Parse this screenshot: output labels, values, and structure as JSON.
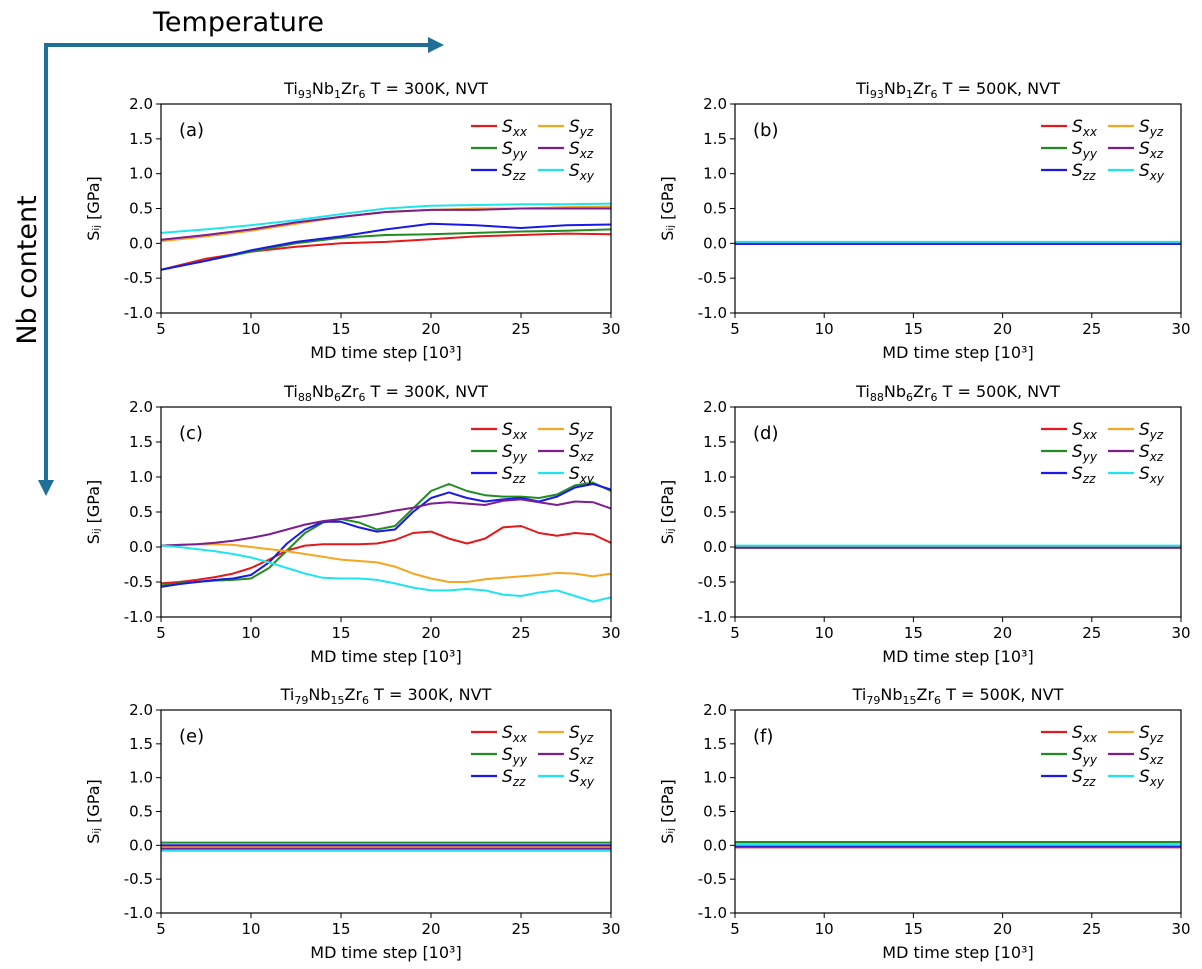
{
  "figure": {
    "x_arrow_label": "Temperature",
    "y_arrow_label": "Nb content",
    "arrow_color": "#1f6f96"
  },
  "colors": {
    "Sxx": "#e31a1c",
    "Syy": "#228b22",
    "Szz": "#1a1ae6",
    "Syz": "#f5a623",
    "Sxz": "#7b1f8f",
    "Sxy": "#1fe4f0"
  },
  "chart_data": [
    {
      "type": "line",
      "panel": "(a)",
      "title": {
        "alloy": "Ti",
        "sub1": "93",
        "el2": "Nb",
        "sub2": "1",
        "el3": "Zr",
        "sub3": "6",
        "temp": "T = 300K, NVT"
      },
      "xlabel": "MD time step [10³]",
      "ylabel": "Sᵢⱼ [GPa]",
      "xlim": [
        5,
        30
      ],
      "ylim": [
        -1.0,
        2.0
      ],
      "xticks": [
        "5",
        "10",
        "15",
        "20",
        "25",
        "30"
      ],
      "yticks": [
        "-1.0",
        "-0.5",
        "0.0",
        "0.5",
        "1.0",
        "1.5",
        "2.0"
      ],
      "x": [
        5,
        7.5,
        10,
        12.5,
        15,
        17.5,
        20,
        22.5,
        25,
        27.5,
        30
      ],
      "series": [
        {
          "name": "Sxx",
          "values": [
            -0.38,
            -0.22,
            -0.12,
            -0.05,
            0.0,
            0.02,
            0.06,
            0.1,
            0.12,
            0.14,
            0.13
          ]
        },
        {
          "name": "Syy",
          "values": [
            -0.38,
            -0.25,
            -0.12,
            0.0,
            0.08,
            0.12,
            0.13,
            0.15,
            0.17,
            0.18,
            0.2
          ]
        },
        {
          "name": "Szz",
          "values": [
            -0.38,
            -0.25,
            -0.1,
            0.02,
            0.1,
            0.2,
            0.28,
            0.26,
            0.22,
            0.26,
            0.27
          ]
        },
        {
          "name": "Syz",
          "values": [
            0.03,
            0.1,
            0.18,
            0.28,
            0.38,
            0.45,
            0.48,
            0.5,
            0.5,
            0.52,
            0.53
          ]
        },
        {
          "name": "Sxz",
          "values": [
            0.05,
            0.12,
            0.2,
            0.3,
            0.38,
            0.45,
            0.48,
            0.48,
            0.5,
            0.5,
            0.5
          ]
        },
        {
          "name": "Sxy",
          "values": [
            0.15,
            0.2,
            0.26,
            0.33,
            0.42,
            0.5,
            0.54,
            0.55,
            0.56,
            0.56,
            0.57
          ]
        }
      ],
      "legend_labels": [
        {
          "base": "S",
          "sub": "xx"
        },
        {
          "base": "S",
          "sub": "yz"
        },
        {
          "base": "S",
          "sub": "yy"
        },
        {
          "base": "S",
          "sub": "xz"
        },
        {
          "base": "S",
          "sub": "zz"
        },
        {
          "base": "S",
          "sub": "xy"
        }
      ],
      "legend_position": "top-right"
    },
    {
      "type": "line",
      "panel": "(b)",
      "title": {
        "alloy": "Ti",
        "sub1": "93",
        "el2": "Nb",
        "sub2": "1",
        "el3": "Zr",
        "sub3": "6",
        "temp": "T = 500K, NVT"
      },
      "xlabel": "MD time step [10³]",
      "ylabel": "Sᵢⱼ [GPa]",
      "xlim": [
        5,
        30
      ],
      "ylim": [
        -1.0,
        2.0
      ],
      "xticks": [
        "5",
        "10",
        "15",
        "20",
        "25",
        "30"
      ],
      "yticks": [
        "-1.0",
        "-0.5",
        "0.0",
        "0.5",
        "1.0",
        "1.5",
        "2.0"
      ],
      "x": [
        5,
        30
      ],
      "series": [
        {
          "name": "Sxx",
          "values": [
            0.0,
            0.0
          ]
        },
        {
          "name": "Syy",
          "values": [
            0.01,
            0.01
          ]
        },
        {
          "name": "Szz",
          "values": [
            -0.01,
            -0.01
          ]
        },
        {
          "name": "Syz",
          "values": [
            0.01,
            0.01
          ]
        },
        {
          "name": "Sxz",
          "values": [
            0.0,
            0.0
          ]
        },
        {
          "name": "Sxy",
          "values": [
            0.02,
            0.02
          ]
        }
      ],
      "legend_labels": [
        {
          "base": "S",
          "sub": "xx"
        },
        {
          "base": "S",
          "sub": "yz"
        },
        {
          "base": "S",
          "sub": "yy"
        },
        {
          "base": "S",
          "sub": "xz"
        },
        {
          "base": "S",
          "sub": "zz"
        },
        {
          "base": "S",
          "sub": "xy"
        }
      ],
      "legend_position": "top-right"
    },
    {
      "type": "line",
      "panel": "(c)",
      "title": {
        "alloy": "Ti",
        "sub1": "88",
        "el2": "Nb",
        "sub2": "6",
        "el3": "Zr",
        "sub3": "6",
        "temp": "T = 300K, NVT"
      },
      "xlabel": "MD time step [10³]",
      "ylabel": "Sᵢⱼ [GPa]",
      "xlim": [
        5,
        30
      ],
      "ylim": [
        -1.0,
        2.0
      ],
      "xticks": [
        "5",
        "10",
        "15",
        "20",
        "25",
        "30"
      ],
      "yticks": [
        "-1.0",
        "-0.5",
        "0.0",
        "0.5",
        "1.0",
        "1.5",
        "2.0"
      ],
      "x": [
        5,
        6,
        7,
        8,
        9,
        10,
        11,
        12,
        13,
        14,
        15,
        16,
        17,
        18,
        19,
        20,
        21,
        22,
        23,
        24,
        25,
        26,
        27,
        28,
        29,
        30
      ],
      "series": [
        {
          "name": "Sxx",
          "values": [
            -0.52,
            -0.5,
            -0.47,
            -0.43,
            -0.38,
            -0.3,
            -0.18,
            -0.05,
            0.02,
            0.04,
            0.04,
            0.04,
            0.05,
            0.1,
            0.2,
            0.22,
            0.12,
            0.05,
            0.12,
            0.28,
            0.3,
            0.2,
            0.16,
            0.2,
            0.18,
            0.06
          ]
        },
        {
          "name": "Syy",
          "values": [
            -0.55,
            -0.52,
            -0.5,
            -0.48,
            -0.47,
            -0.45,
            -0.3,
            -0.05,
            0.2,
            0.35,
            0.4,
            0.35,
            0.25,
            0.3,
            0.55,
            0.8,
            0.9,
            0.8,
            0.74,
            0.72,
            0.72,
            0.7,
            0.75,
            0.88,
            0.92,
            0.8
          ]
        },
        {
          "name": "Szz",
          "values": [
            -0.57,
            -0.53,
            -0.5,
            -0.47,
            -0.45,
            -0.4,
            -0.22,
            0.05,
            0.25,
            0.36,
            0.36,
            0.28,
            0.22,
            0.25,
            0.5,
            0.7,
            0.78,
            0.7,
            0.65,
            0.68,
            0.7,
            0.65,
            0.72,
            0.85,
            0.9,
            0.82
          ]
        },
        {
          "name": "Syz",
          "values": [
            0.02,
            0.03,
            0.04,
            0.04,
            0.03,
            0.0,
            -0.03,
            -0.06,
            -0.1,
            -0.14,
            -0.18,
            -0.2,
            -0.22,
            -0.28,
            -0.38,
            -0.45,
            -0.5,
            -0.5,
            -0.46,
            -0.44,
            -0.42,
            -0.4,
            -0.37,
            -0.38,
            -0.42,
            -0.38
          ]
        },
        {
          "name": "Sxz",
          "values": [
            0.02,
            0.03,
            0.04,
            0.06,
            0.09,
            0.13,
            0.18,
            0.25,
            0.32,
            0.37,
            0.4,
            0.43,
            0.47,
            0.52,
            0.56,
            0.62,
            0.64,
            0.62,
            0.6,
            0.66,
            0.68,
            0.64,
            0.6,
            0.65,
            0.64,
            0.55
          ]
        },
        {
          "name": "Sxy",
          "values": [
            0.02,
            0.0,
            -0.03,
            -0.06,
            -0.1,
            -0.15,
            -0.22,
            -0.3,
            -0.38,
            -0.44,
            -0.45,
            -0.45,
            -0.47,
            -0.52,
            -0.58,
            -0.62,
            -0.62,
            -0.6,
            -0.62,
            -0.68,
            -0.7,
            -0.65,
            -0.62,
            -0.7,
            -0.78,
            -0.72
          ]
        }
      ],
      "legend_labels": [
        {
          "base": "S",
          "sub": "xx"
        },
        {
          "base": "S",
          "sub": "yz"
        },
        {
          "base": "S",
          "sub": "yy"
        },
        {
          "base": "S",
          "sub": "xz"
        },
        {
          "base": "S",
          "sub": "zz"
        },
        {
          "base": "S",
          "sub": "xy"
        }
      ],
      "legend_position": "top-right"
    },
    {
      "type": "line",
      "panel": "(d)",
      "title": {
        "alloy": "Ti",
        "sub1": "88",
        "el2": "Nb",
        "sub2": "6",
        "el3": "Zr",
        "sub3": "6",
        "temp": "T = 500K, NVT"
      },
      "xlabel": "MD time step [10³]",
      "ylabel": "Sᵢⱼ [GPa]",
      "xlim": [
        5,
        30
      ],
      "ylim": [
        -1.0,
        2.0
      ],
      "xticks": [
        "5",
        "10",
        "15",
        "20",
        "25",
        "30"
      ],
      "yticks": [
        "-1.0",
        "-0.5",
        "0.0",
        "0.5",
        "1.0",
        "1.5",
        "2.0"
      ],
      "x": [
        5,
        30
      ],
      "series": [
        {
          "name": "Sxx",
          "values": [
            0.0,
            0.0
          ]
        },
        {
          "name": "Syy",
          "values": [
            -0.01,
            -0.01
          ]
        },
        {
          "name": "Szz",
          "values": [
            0.0,
            0.0
          ]
        },
        {
          "name": "Syz",
          "values": [
            0.01,
            0.01
          ]
        },
        {
          "name": "Sxz",
          "values": [
            -0.01,
            -0.01
          ]
        },
        {
          "name": "Sxy",
          "values": [
            0.02,
            0.02
          ]
        }
      ],
      "legend_labels": [
        {
          "base": "S",
          "sub": "xx"
        },
        {
          "base": "S",
          "sub": "yz"
        },
        {
          "base": "S",
          "sub": "yy"
        },
        {
          "base": "S",
          "sub": "xz"
        },
        {
          "base": "S",
          "sub": "zz"
        },
        {
          "base": "S",
          "sub": "xy"
        }
      ],
      "legend_position": "top-right"
    },
    {
      "type": "line",
      "panel": "(e)",
      "title": {
        "alloy": "Ti",
        "sub1": "79",
        "el2": "Nb",
        "sub2": "15",
        "el3": "Zr",
        "sub3": "6",
        "temp": "T = 300K, NVT"
      },
      "xlabel": "MD time step [10³]",
      "ylabel": "Sᵢⱼ [GPa]",
      "xlim": [
        5,
        30
      ],
      "ylim": [
        -1.0,
        2.0
      ],
      "xticks": [
        "5",
        "10",
        "15",
        "20",
        "25",
        "30"
      ],
      "yticks": [
        "-1.0",
        "-0.5",
        "0.0",
        "0.5",
        "1.0",
        "1.5",
        "2.0"
      ],
      "x": [
        5,
        30
      ],
      "series": [
        {
          "name": "Sxx",
          "values": [
            -0.02,
            -0.02
          ]
        },
        {
          "name": "Syy",
          "values": [
            0.04,
            0.04
          ]
        },
        {
          "name": "Szz",
          "values": [
            0.0,
            0.0
          ]
        },
        {
          "name": "Syz",
          "values": [
            -0.03,
            -0.03
          ]
        },
        {
          "name": "Sxz",
          "values": [
            -0.05,
            -0.05
          ]
        },
        {
          "name": "Sxy",
          "values": [
            -0.08,
            -0.08
          ]
        }
      ],
      "legend_labels": [
        {
          "base": "S",
          "sub": "xx"
        },
        {
          "base": "S",
          "sub": "yz"
        },
        {
          "base": "S",
          "sub": "yy"
        },
        {
          "base": "S",
          "sub": "xz"
        },
        {
          "base": "S",
          "sub": "zz"
        },
        {
          "base": "S",
          "sub": "xy"
        }
      ],
      "legend_position": "top-right"
    },
    {
      "type": "line",
      "panel": "(f)",
      "title": {
        "alloy": "Ti",
        "sub1": "79",
        "el2": "Nb",
        "sub2": "15",
        "el3": "Zr",
        "sub3": "6",
        "temp": "T = 500K, NVT"
      },
      "xlabel": "MD time step [10³]",
      "ylabel": "Sᵢⱼ [GPa]",
      "xlim": [
        5,
        30
      ],
      "ylim": [
        -1.0,
        2.0
      ],
      "xticks": [
        "5",
        "10",
        "15",
        "20",
        "25",
        "30"
      ],
      "yticks": [
        "-1.0",
        "-0.5",
        "0.0",
        "0.5",
        "1.0",
        "1.5",
        "2.0"
      ],
      "x": [
        5,
        30
      ],
      "series": [
        {
          "name": "Sxx",
          "values": [
            -0.03,
            -0.03
          ]
        },
        {
          "name": "Syy",
          "values": [
            0.05,
            0.05
          ]
        },
        {
          "name": "Szz",
          "values": [
            -0.01,
            -0.01
          ]
        },
        {
          "name": "Syz",
          "values": [
            0.02,
            0.02
          ]
        },
        {
          "name": "Sxz",
          "values": [
            0.0,
            0.0
          ]
        },
        {
          "name": "Sxy",
          "values": [
            0.01,
            0.01
          ]
        }
      ],
      "legend_labels": [
        {
          "base": "S",
          "sub": "xx"
        },
        {
          "base": "S",
          "sub": "yz"
        },
        {
          "base": "S",
          "sub": "yy"
        },
        {
          "base": "S",
          "sub": "xz"
        },
        {
          "base": "S",
          "sub": "zz"
        },
        {
          "base": "S",
          "sub": "xy"
        }
      ],
      "legend_position": "top-right"
    }
  ]
}
